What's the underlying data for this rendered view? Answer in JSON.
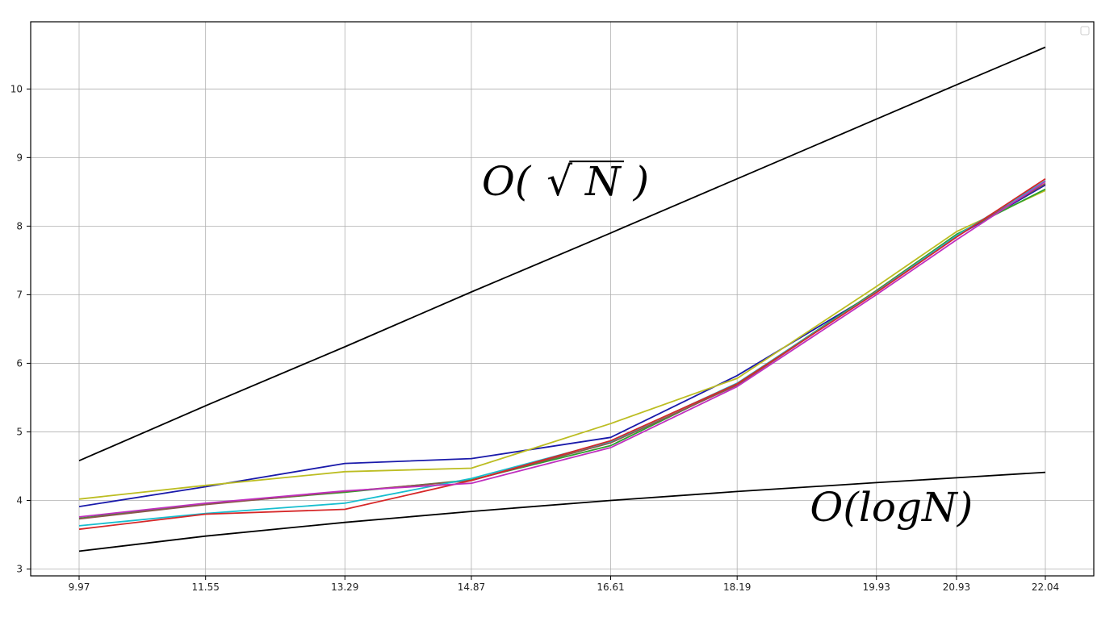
{
  "chart_data": {
    "type": "line",
    "title": "",
    "xlabel": "",
    "ylabel": "",
    "x": [
      9.97,
      11.55,
      13.29,
      14.87,
      16.61,
      18.19,
      19.93,
      20.93,
      22.04
    ],
    "x_tick_labels": [
      "9.97",
      "11.55",
      "13.29",
      "14.87",
      "16.61",
      "18.19",
      "19.93",
      "20.93",
      "22.04"
    ],
    "y_ticks": [
      3,
      4,
      5,
      6,
      7,
      8,
      9,
      10
    ],
    "ylim": [
      2.9,
      10.98
    ],
    "grid": true,
    "legend": "top-right (empty)",
    "annotations": [
      {
        "text": "O(√N)",
        "prefix": "O(",
        "radicand": "N",
        "suffix": ")",
        "x": 15.0,
        "y": 8.45
      },
      {
        "text": "O(logN)",
        "x": 19.1,
        "y": 3.7
      }
    ],
    "series": [
      {
        "color": "#000000",
        "values": [
          4.58,
          5.38,
          6.24,
          7.04,
          7.9,
          8.69,
          9.56,
          10.06,
          10.61
        ]
      },
      {
        "color": "#000000",
        "values": [
          3.26,
          3.48,
          3.68,
          3.84,
          4.0,
          4.13,
          4.26,
          4.33,
          4.41
        ]
      },
      {
        "color": "#1a1aaa",
        "values": [
          3.91,
          4.2,
          4.54,
          4.61,
          4.92,
          5.82,
          7.04,
          7.85,
          8.6
        ]
      },
      {
        "color": "#bcbd22",
        "values": [
          4.02,
          4.22,
          4.42,
          4.47,
          5.12,
          5.78,
          7.12,
          7.92,
          8.52
        ]
      },
      {
        "color": "#2ca02c",
        "values": [
          3.74,
          3.95,
          4.12,
          4.3,
          4.8,
          5.7,
          7.06,
          7.88,
          8.54
        ]
      },
      {
        "color": "#8c564b",
        "values": [
          3.73,
          3.94,
          4.13,
          4.29,
          4.84,
          5.68,
          7.05,
          7.86,
          8.62
        ]
      },
      {
        "color": "#17becf",
        "values": [
          3.63,
          3.81,
          3.96,
          4.32,
          4.86,
          5.71,
          7.04,
          7.86,
          8.66
        ]
      },
      {
        "color": "#d62728",
        "values": [
          3.58,
          3.8,
          3.87,
          4.29,
          4.87,
          5.7,
          7.03,
          7.84,
          8.69
        ]
      },
      {
        "color": "#c02fbf",
        "values": [
          3.76,
          3.96,
          4.14,
          4.25,
          4.77,
          5.66,
          7.0,
          7.8,
          8.65
        ]
      }
    ]
  }
}
